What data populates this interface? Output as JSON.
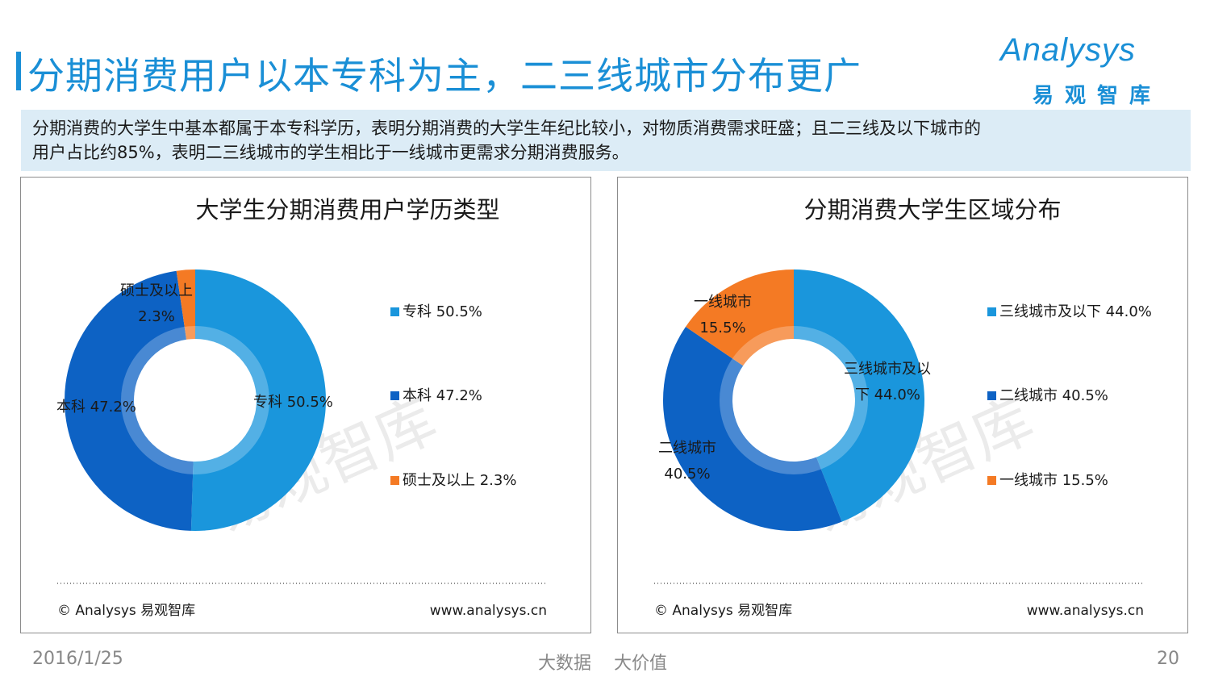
{
  "header": {
    "title": "分期消费用户以本专科为主，二三线城市分布更广",
    "logo_word": "Analysys",
    "logo_cn": "易观智库"
  },
  "summary": {
    "line1": "分期消费的大学生中基本都属于本专科学历，表明分期消费的大学生年纪比较小，对物质消费需求旺盛；且二三线及以下城市的",
    "line2": "用户占比约85%，表明二三线城市的学生相比于一线城市更需求分期消费服务。"
  },
  "watermark": "易观智库",
  "panel_footer": {
    "copyright": "© Analysys 易观智库",
    "url": "www.analysys.cn"
  },
  "footer": {
    "date": "2016/1/25",
    "slogan": "大数据    大价值",
    "page": "20"
  },
  "chart_data": [
    {
      "type": "pie",
      "donut": true,
      "title": "大学生分期消费用户学历类型",
      "categories": [
        "专科",
        "本科",
        "硕士及以上"
      ],
      "values": [
        50.5,
        47.2,
        2.3
      ],
      "value_labels": [
        "50.5%",
        "47.2%",
        "2.3%"
      ],
      "slice_labels": [
        "专科",
        "本科",
        "硕士及以上"
      ],
      "colors": [
        "#1a96dc",
        "#0d62c4",
        "#f47a24"
      ],
      "legend_position": "right"
    },
    {
      "type": "pie",
      "donut": true,
      "title": "分期消费大学生区域分布",
      "categories": [
        "三线城市及以下",
        "二线城市",
        "一线城市"
      ],
      "values": [
        44.0,
        40.5,
        15.5
      ],
      "value_labels": [
        "44.0%",
        "40.5%",
        "15.5%"
      ],
      "slice_labels": [
        "三线城市及以下",
        "二线城市",
        "一线城市"
      ],
      "colors": [
        "#1a96dc",
        "#0d62c4",
        "#f47a24"
      ],
      "legend_position": "right"
    }
  ]
}
